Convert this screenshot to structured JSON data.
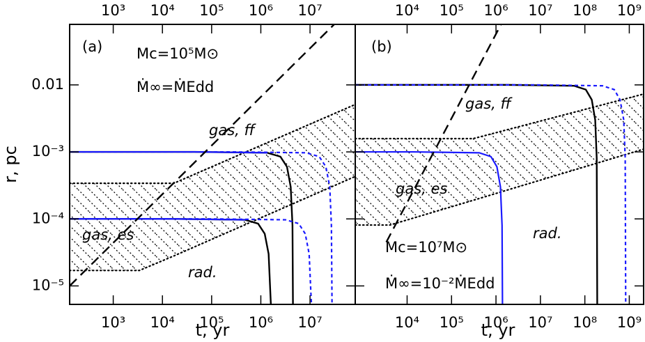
{
  "chart_data": [
    {
      "type": "line",
      "log_x": true,
      "log_y": true,
      "xlabel": "t, yr",
      "ylabel": "r, pc",
      "xlim": [
        130,
        83000000
      ],
      "ylim": [
        5.3e-06,
        0.08
      ],
      "xticks": [
        {
          "value": 1000,
          "label": "10³"
        },
        {
          "value": 10000,
          "label": "10⁴"
        },
        {
          "value": 100000,
          "label": "10⁵"
        },
        {
          "value": 1000000,
          "label": "10⁶"
        },
        {
          "value": 10000000,
          "label": "10⁷"
        }
      ],
      "yticks": [
        {
          "value": 1e-05,
          "label": "10⁻⁵"
        },
        {
          "value": 0.0001,
          "label": "10⁻⁴"
        },
        {
          "value": 0.001,
          "label": "10⁻³"
        },
        0.01
      ],
      "ytick_labels": true,
      "bands": [
        {
          "x": [
            130,
            3400,
            17000,
            83000000
          ],
          "lower": [
            1.7e-05,
            1.7e-05,
            2.8e-05,
            0.00043
          ],
          "upper": [
            0.00034,
            0.00034,
            0.00034,
            0.0051
          ]
        }
      ],
      "series": [
        {
          "color": "#000000",
          "dash": "solid",
          "x": [
            130,
            45000,
            1350000,
            2500000,
            3400000,
            4050000,
            4400000,
            4500000
          ],
          "values": [
            0.001,
            0.001,
            0.00097,
            0.00085,
            0.0006,
            0.0003,
            8e-05,
            5.3e-06
          ]
        },
        {
          "color": "#000000",
          "dash": "solid",
          "x": [
            130,
            16000,
            480000,
            880000,
            1200000,
            1440000,
            1560000,
            1600000
          ],
          "values": [
            0.0001,
            0.0001,
            9.7e-05,
            8.5e-05,
            6e-05,
            3e-05,
            8e-06,
            5.3e-06
          ]
        },
        {
          "color": "#1a1aff",
          "dash": "solid",
          "x": [
            130,
            45000,
            1350000
          ],
          "values": [
            0.001,
            0.001,
            0.00097
          ]
        },
        {
          "color": "#1a1aff",
          "dash": "solid",
          "x": [
            130,
            16000,
            480000
          ],
          "values": [
            0.0001,
            0.0001,
            9.7e-05
          ]
        },
        {
          "color": "#1a1aff",
          "dash": "dashed",
          "x": [
            130,
            280000,
            8400000,
            15400000,
            21000000,
            25200000,
            27200000,
            28000000
          ],
          "values": [
            0.001,
            0.001,
            0.00097,
            0.00085,
            0.0006,
            0.0003,
            8e-05,
            5.3e-06
          ]
        },
        {
          "color": "#1a1aff",
          "dash": "dashed",
          "x": [
            130,
            107000,
            3200000,
            5900000,
            8000000,
            9600000,
            10400000,
            10700000
          ],
          "values": [
            0.0001,
            0.0001,
            9.7e-05,
            8.5e-05,
            6e-05,
            3e-05,
            8e-06,
            5.3e-06
          ]
        },
        {
          "color": "#000000",
          "dash": "long",
          "x": [
            130,
            31000000
          ],
          "values": [
            1e-05,
            0.08
          ]
        }
      ],
      "annotations": [
        "(a)",
        "Mc=10⁵M⊙",
        "Ṁ∞=ṀEdd",
        "gas, ff",
        "gas, es",
        "rad."
      ]
    },
    {
      "type": "line",
      "log_x": true,
      "log_y": true,
      "xlabel": "t, yr",
      "xlim": [
        680,
        2100000000
      ],
      "ylim": [
        5.3e-06,
        0.08
      ],
      "xticks": [
        {
          "value": 10000,
          "label": "10⁴"
        },
        {
          "value": 100000,
          "label": "10⁵"
        },
        {
          "value": 1000000,
          "label": "10⁶"
        },
        {
          "value": 10000000,
          "label": "10⁷"
        },
        {
          "value": 100000000,
          "label": "10⁸"
        },
        {
          "value": 1000000000,
          "label": "10⁹"
        }
      ],
      "yticks": [
        1e-05,
        0.0001,
        0.001,
        0.01
      ],
      "ytick_labels": false,
      "bands": [
        {
          "x": [
            680,
            4100,
            310000,
            2100000000
          ],
          "lower": [
            8.1e-05,
            8.1e-05,
            0.00019,
            0.0011
          ],
          "upper": [
            0.00158,
            0.00158,
            0.00158,
            0.0073
          ]
        }
      ],
      "series": [
        {
          "color": "#000000",
          "dash": "solid",
          "x": [
            680,
            1900000,
            57000000,
            105000000,
            143000000,
            171000000,
            185000000,
            190000000
          ],
          "values": [
            0.01,
            0.01,
            0.0097,
            0.0085,
            0.006,
            0.003,
            0.0008,
            5.3e-06
          ]
        },
        {
          "color": "#1a1aff",
          "dash": "dashed",
          "x": [
            680,
            8300000,
            250000000,
            460000000,
            620000000,
            750000000,
            810000000,
            830000000
          ],
          "values": [
            0.01,
            0.01,
            0.0097,
            0.0085,
            0.006,
            0.003,
            0.0008,
            5.3e-06
          ]
        },
        {
          "color": "#1a1aff",
          "dash": "solid",
          "x": [
            680,
            14000,
            420000,
            770000,
            1050000,
            1260000,
            1370000,
            1400000
          ],
          "values": [
            0.001,
            0.001,
            0.00097,
            0.00085,
            0.0006,
            0.0003,
            8e-05,
            5.3e-06
          ]
        },
        {
          "color": "#000000",
          "dash": "long",
          "x": [
            3400,
            1300000
          ],
          "values": [
            4.5e-05,
            0.08
          ]
        }
      ],
      "annotations": [
        "(b)",
        "gas, ff",
        "gas, es",
        "rad.",
        "Mc=10⁷M⊙",
        "Ṁ∞=10⁻²ṀEdd"
      ]
    }
  ]
}
